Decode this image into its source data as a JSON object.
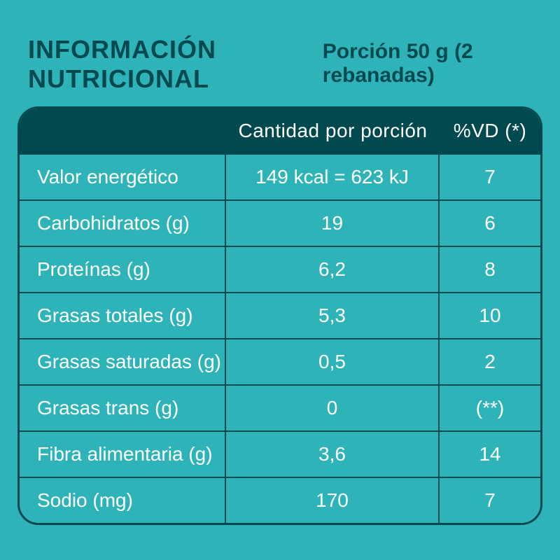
{
  "colors": {
    "background": "#2eb3b8",
    "dark": "#004a4f",
    "text": "#ffffff",
    "page_bg": "#e8e8e8"
  },
  "header": {
    "title": "INFORMACIÓN NUTRICIONAL",
    "portion": "Porción 50 g (2 rebanadas)"
  },
  "table": {
    "columns": {
      "name": "",
      "amount": "Cantidad por porción",
      "dv": "%VD (*)"
    },
    "rows": [
      {
        "name": "Valor energético",
        "amount": "149 kcal = 623 kJ",
        "dv": "7"
      },
      {
        "name": "Carbohidratos (g)",
        "amount": "19",
        "dv": "6"
      },
      {
        "name": "Proteínas (g)",
        "amount": "6,2",
        "dv": "8"
      },
      {
        "name": "Grasas totales (g)",
        "amount": "5,3",
        "dv": "10"
      },
      {
        "name": "Grasas saturadas (g)",
        "amount": "0,5",
        "dv": "2"
      },
      {
        "name": "Grasas trans (g)",
        "amount": "0",
        "dv": "(**)"
      },
      {
        "name": "Fibra alimentaria (g)",
        "amount": "3,6",
        "dv": "14"
      },
      {
        "name": "Sodio (mg)",
        "amount": "170",
        "dv": "7"
      }
    ]
  }
}
